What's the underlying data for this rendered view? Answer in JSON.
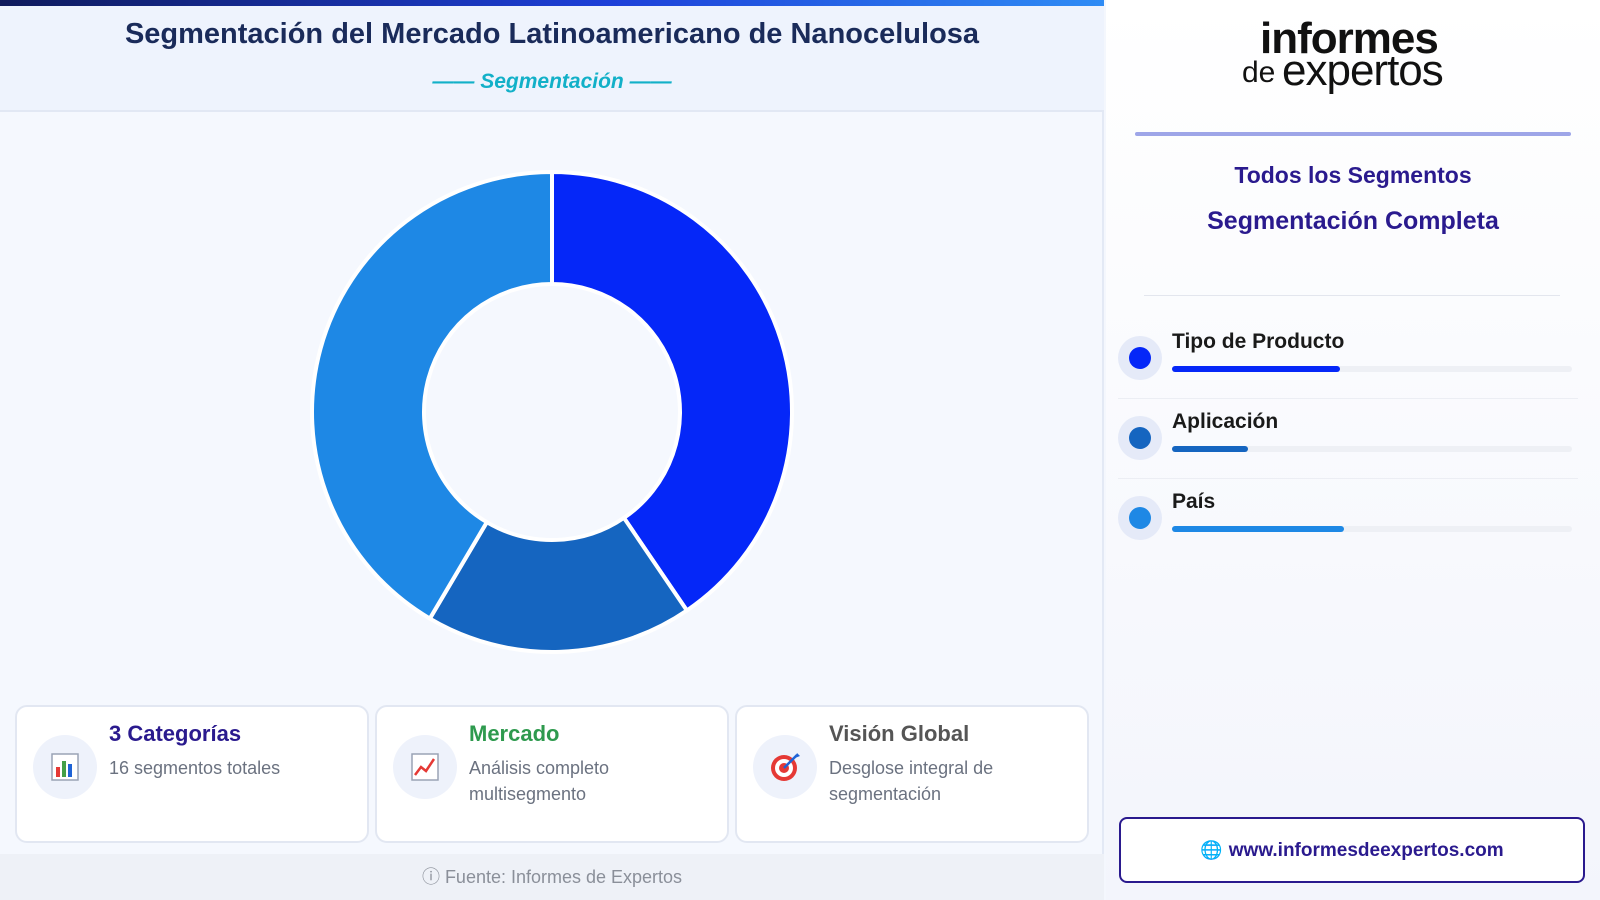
{
  "header": {
    "title": "Segmentación del Mercado Latinoamericano de Nanocelulosa",
    "subtitle": "—— Segmentación ——"
  },
  "chart_data": {
    "type": "pie",
    "donut": true,
    "categories": [
      "Tipo de Producto",
      "Aplicación",
      "País"
    ],
    "values": [
      40.5,
      18.0,
      41.5
    ],
    "colors": [
      "#0527f8",
      "#1565c0",
      "#1e88e5"
    ]
  },
  "cards": [
    {
      "title": "3 Categorías",
      "desc": "16 segmentos totales",
      "icon": "bar-chart-icon",
      "title_color": "#2a1a8e"
    },
    {
      "title": "Mercado",
      "desc": "Análisis completo multisegmento",
      "icon": "trend-chart-icon",
      "title_color": "#2e9a4e"
    },
    {
      "title": "Visión Global",
      "desc": "Desglose integral de segmentación",
      "icon": "target-icon",
      "title_color": "#555555"
    }
  ],
  "footer": {
    "source": "ⓘ Fuente: Informes de Expertos"
  },
  "sidebar": {
    "logo": {
      "line1": "informes",
      "line2": "de",
      "line3": "expertos"
    },
    "heading1": "Todos los Segmentos",
    "heading2": "Segmentación Completa",
    "segments": [
      {
        "label": "Tipo de Producto",
        "color": "#0527f8",
        "bar": 0.42
      },
      {
        "label": "Aplicación",
        "color": "#1565c0",
        "bar": 0.19
      },
      {
        "label": "País",
        "color": "#1e88e5",
        "bar": 0.43
      }
    ],
    "url": "www.informesdeexpertos.com"
  }
}
